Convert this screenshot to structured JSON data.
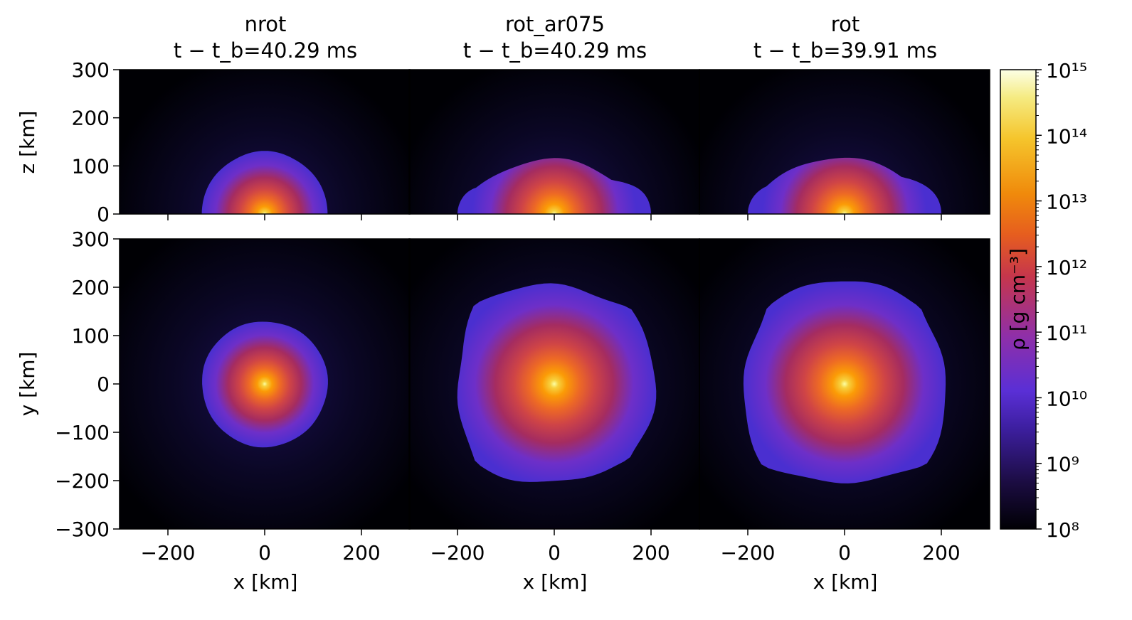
{
  "chart_data": {
    "type": "heatmap",
    "quantity_label": "ρ [g cm⁻³]",
    "colormap": "inferno-like (black → purple → red → orange → yellow → white)",
    "colorbar": {
      "scale": "log",
      "range": [
        100000000.0,
        1000000000000000.0
      ],
      "tick_labels": [
        "10⁸",
        "10⁹",
        "10¹⁰",
        "10¹¹",
        "10¹²",
        "10¹³",
        "10¹⁴",
        "10¹⁵"
      ],
      "label": "ρ [g cm⁻³]"
    },
    "columns": [
      {
        "name": "nrot",
        "time_label": "t − t_b=40.29 ms",
        "time_ms": 40.29,
        "shock_radius_xy_km": 130,
        "shock_radius_xz_km": 130,
        "shape": "round"
      },
      {
        "name": "rot_ar075",
        "time_label": "t − t_b=40.29 ms",
        "time_ms": 40.29,
        "shock_radius_xy_km": 215,
        "shock_height_xz_km": 115,
        "shape": "irregular"
      },
      {
        "name": "rot",
        "time_label": "t − t_b=39.91 ms",
        "time_ms": 39.91,
        "shock_radius_xy_km": 220,
        "shock_height_xz_km": 120,
        "shape": "irregular"
      }
    ],
    "rows": [
      {
        "plane": "xz",
        "ylabel": "z [km]",
        "ylim": [
          0,
          300
        ],
        "yticks": [
          "0",
          "100",
          "200",
          "300"
        ]
      },
      {
        "plane": "xy",
        "ylabel": "y [km]",
        "ylim": [
          -300,
          300
        ],
        "yticks": [
          "−300",
          "−200",
          "−100",
          "0",
          "100",
          "200",
          "300"
        ]
      }
    ],
    "x": {
      "label": "x [km]",
      "xlim": [
        -300,
        300
      ],
      "xticks": [
        "−200",
        "0",
        "200"
      ]
    }
  }
}
